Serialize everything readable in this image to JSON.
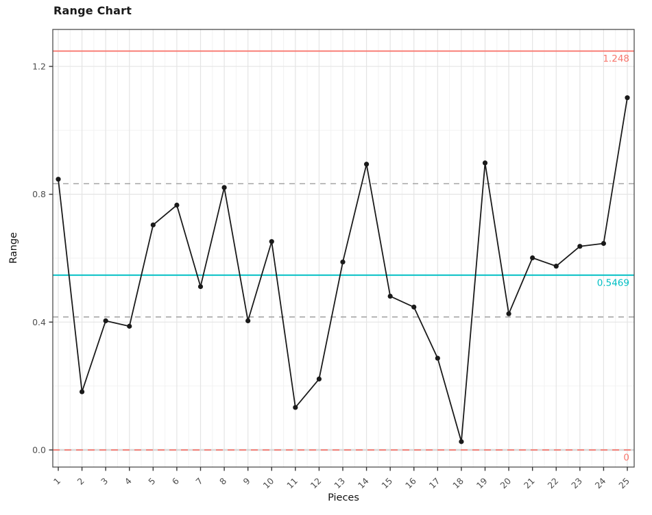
{
  "chart_data": {
    "type": "line",
    "title": "Range Chart",
    "xlabel": "Pieces",
    "ylabel": "Range",
    "x": [
      1,
      2,
      3,
      4,
      5,
      6,
      7,
      8,
      9,
      10,
      11,
      12,
      13,
      14,
      15,
      16,
      17,
      18,
      19,
      20,
      21,
      22,
      23,
      24,
      25
    ],
    "xtick_labels": [
      "1",
      "2",
      "3",
      "4",
      "5",
      "6",
      "7",
      "8",
      "9",
      "10",
      "11",
      "12",
      "13",
      "14",
      "15",
      "16",
      "17",
      "18",
      "19",
      "20",
      "21",
      "22",
      "23",
      "24",
      "25"
    ],
    "values": [
      0.847,
      0.182,
      0.404,
      0.387,
      0.704,
      0.766,
      0.511,
      0.821,
      0.404,
      0.652,
      0.133,
      0.222,
      0.588,
      0.894,
      0.481,
      0.447,
      0.287,
      0.026,
      0.898,
      0.426,
      0.601,
      0.575,
      0.637,
      0.646,
      1.102
    ],
    "ylim": [
      -0.05,
      1.31
    ],
    "yticks": [
      0.0,
      0.4,
      0.8,
      1.2
    ],
    "ytick_labels": [
      "0.0",
      "0.4",
      "0.8",
      "1.2"
    ],
    "yticks_minor": [
      0.2,
      0.6,
      1.0
    ],
    "grid": true,
    "legend": false,
    "center_line": {
      "value": 0.5469,
      "label": "0.5469",
      "style": "solid"
    },
    "upper_limit": {
      "value": 1.248,
      "label": "1.248",
      "style": "solid"
    },
    "lower_limit": {
      "value": 0,
      "label": "0",
      "style": "dashed"
    },
    "zone_lines": {
      "values": [
        0.833,
        0.416
      ],
      "style": "dashed"
    }
  },
  "colors": {
    "limit_line": "#F8766D",
    "center_line": "#00BFC4",
    "zone_line": "#A6A6A6",
    "series": "#1A1A1A",
    "grid_major": "#E4E4E4",
    "grid_minor": "#F2F2F2",
    "panel_border": "#4D4D4D",
    "tick_mark": "#333333",
    "tick_label": "#4D4D4D",
    "lcl_underlay": "#D6D6D6"
  }
}
